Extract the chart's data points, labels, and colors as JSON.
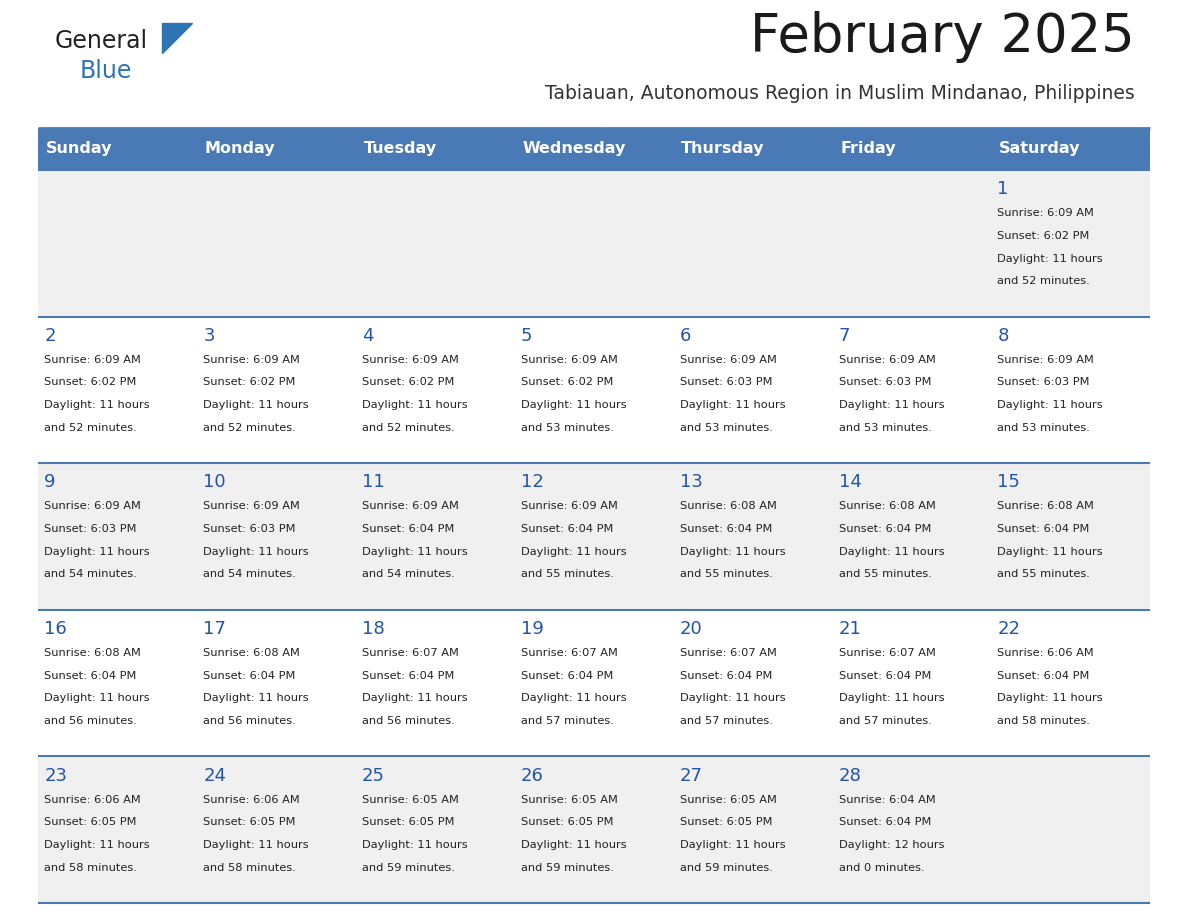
{
  "title": "February 2025",
  "subtitle": "Tabiauan, Autonomous Region in Muslim Mindanao, Philippines",
  "days_of_week": [
    "Sunday",
    "Monday",
    "Tuesday",
    "Wednesday",
    "Thursday",
    "Friday",
    "Saturday"
  ],
  "header_bg": "#4a7ab5",
  "header_text": "#ffffff",
  "row_bg_light": "#f0f0f0",
  "row_bg_white": "#ffffff",
  "day_num_color": "#2255aa",
  "cell_text_color": "#222222",
  "border_color": "#4a7ab5",
  "logo_general_color": "#222222",
  "logo_blue_color": "#2e74b5",
  "logo_triangle_color": "#2e74b5",
  "calendar": [
    [
      null,
      null,
      null,
      null,
      null,
      null,
      {
        "day": 1,
        "sunrise": "6:09 AM",
        "sunset": "6:02 PM",
        "daylight": "11 hours and 52 minutes."
      }
    ],
    [
      {
        "day": 2,
        "sunrise": "6:09 AM",
        "sunset": "6:02 PM",
        "daylight": "11 hours and 52 minutes."
      },
      {
        "day": 3,
        "sunrise": "6:09 AM",
        "sunset": "6:02 PM",
        "daylight": "11 hours and 52 minutes."
      },
      {
        "day": 4,
        "sunrise": "6:09 AM",
        "sunset": "6:02 PM",
        "daylight": "11 hours and 52 minutes."
      },
      {
        "day": 5,
        "sunrise": "6:09 AM",
        "sunset": "6:02 PM",
        "daylight": "11 hours and 53 minutes."
      },
      {
        "day": 6,
        "sunrise": "6:09 AM",
        "sunset": "6:03 PM",
        "daylight": "11 hours and 53 minutes."
      },
      {
        "day": 7,
        "sunrise": "6:09 AM",
        "sunset": "6:03 PM",
        "daylight": "11 hours and 53 minutes."
      },
      {
        "day": 8,
        "sunrise": "6:09 AM",
        "sunset": "6:03 PM",
        "daylight": "11 hours and 53 minutes."
      }
    ],
    [
      {
        "day": 9,
        "sunrise": "6:09 AM",
        "sunset": "6:03 PM",
        "daylight": "11 hours and 54 minutes."
      },
      {
        "day": 10,
        "sunrise": "6:09 AM",
        "sunset": "6:03 PM",
        "daylight": "11 hours and 54 minutes."
      },
      {
        "day": 11,
        "sunrise": "6:09 AM",
        "sunset": "6:04 PM",
        "daylight": "11 hours and 54 minutes."
      },
      {
        "day": 12,
        "sunrise": "6:09 AM",
        "sunset": "6:04 PM",
        "daylight": "11 hours and 55 minutes."
      },
      {
        "day": 13,
        "sunrise": "6:08 AM",
        "sunset": "6:04 PM",
        "daylight": "11 hours and 55 minutes."
      },
      {
        "day": 14,
        "sunrise": "6:08 AM",
        "sunset": "6:04 PM",
        "daylight": "11 hours and 55 minutes."
      },
      {
        "day": 15,
        "sunrise": "6:08 AM",
        "sunset": "6:04 PM",
        "daylight": "11 hours and 55 minutes."
      }
    ],
    [
      {
        "day": 16,
        "sunrise": "6:08 AM",
        "sunset": "6:04 PM",
        "daylight": "11 hours and 56 minutes."
      },
      {
        "day": 17,
        "sunrise": "6:08 AM",
        "sunset": "6:04 PM",
        "daylight": "11 hours and 56 minutes."
      },
      {
        "day": 18,
        "sunrise": "6:07 AM",
        "sunset": "6:04 PM",
        "daylight": "11 hours and 56 minutes."
      },
      {
        "day": 19,
        "sunrise": "6:07 AM",
        "sunset": "6:04 PM",
        "daylight": "11 hours and 57 minutes."
      },
      {
        "day": 20,
        "sunrise": "6:07 AM",
        "sunset": "6:04 PM",
        "daylight": "11 hours and 57 minutes."
      },
      {
        "day": 21,
        "sunrise": "6:07 AM",
        "sunset": "6:04 PM",
        "daylight": "11 hours and 57 minutes."
      },
      {
        "day": 22,
        "sunrise": "6:06 AM",
        "sunset": "6:04 PM",
        "daylight": "11 hours and 58 minutes."
      }
    ],
    [
      {
        "day": 23,
        "sunrise": "6:06 AM",
        "sunset": "6:05 PM",
        "daylight": "11 hours and 58 minutes."
      },
      {
        "day": 24,
        "sunrise": "6:06 AM",
        "sunset": "6:05 PM",
        "daylight": "11 hours and 58 minutes."
      },
      {
        "day": 25,
        "sunrise": "6:05 AM",
        "sunset": "6:05 PM",
        "daylight": "11 hours and 59 minutes."
      },
      {
        "day": 26,
        "sunrise": "6:05 AM",
        "sunset": "6:05 PM",
        "daylight": "11 hours and 59 minutes."
      },
      {
        "day": 27,
        "sunrise": "6:05 AM",
        "sunset": "6:05 PM",
        "daylight": "11 hours and 59 minutes."
      },
      {
        "day": 28,
        "sunrise": "6:04 AM",
        "sunset": "6:04 PM",
        "daylight": "12 hours and 0 minutes."
      },
      null
    ]
  ]
}
